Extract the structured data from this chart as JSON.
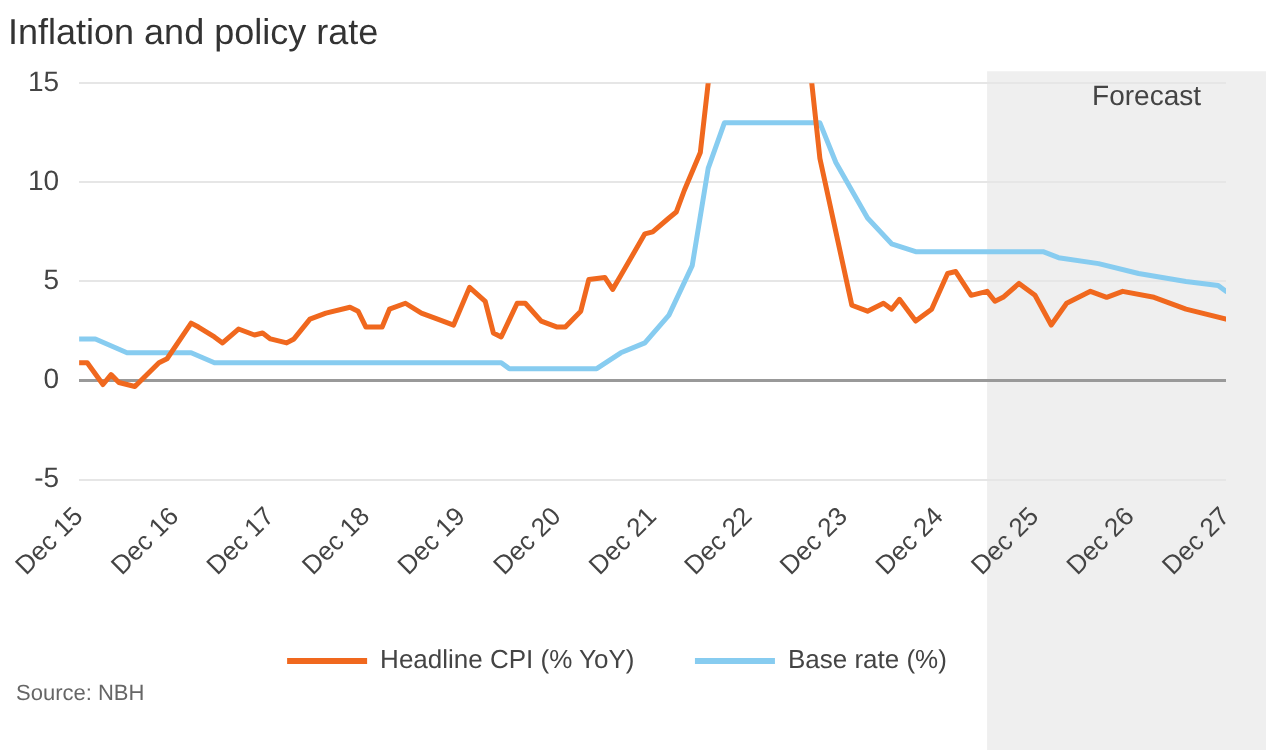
{
  "chart_data": {
    "type": "line",
    "title": "Inflation and policy rate",
    "annotations": [
      "Source: NBH"
    ],
    "xlim": [
      "2015-12",
      "2027-12"
    ],
    "xticks": [
      {
        "value": "2015-12",
        "label": "Dec 15"
      },
      {
        "value": "2016-12",
        "label": "Dec 16"
      },
      {
        "value": "2017-12",
        "label": "Dec 17"
      },
      {
        "value": "2018-12",
        "label": "Dec 18"
      },
      {
        "value": "2019-12",
        "label": "Dec 19"
      },
      {
        "value": "2020-12",
        "label": "Dec 20"
      },
      {
        "value": "2021-12",
        "label": "Dec 21"
      },
      {
        "value": "2022-12",
        "label": "Dec 22"
      },
      {
        "value": "2023-12",
        "label": "Dec 23"
      },
      {
        "value": "2024-12",
        "label": "Dec 24"
      },
      {
        "value": "2025-12",
        "label": "Dec 25"
      },
      {
        "value": "2026-12",
        "label": "Dec 26"
      },
      {
        "value": "2027-12",
        "label": "Dec 27"
      }
    ],
    "ylim": [
      -5,
      15
    ],
    "yticks": [
      -5,
      0,
      5,
      10,
      15
    ],
    "grid": "y",
    "legend": "bottom",
    "marker": "none",
    "line_style": "solid",
    "bands": [
      {
        "axis": "x",
        "from": "2025-06",
        "to": "2027-12",
        "label": "Forecast",
        "color": "#efefef"
      }
    ],
    "series": [
      {
        "name": "Headline CPI (% YoY)",
        "color": "#f0681e",
        "x": [
          "2015-12",
          "2016-01",
          "2016-03",
          "2016-04",
          "2016-05",
          "2016-07",
          "2016-10",
          "2016-11",
          "2017-02",
          "2017-03",
          "2017-05",
          "2017-06",
          "2017-08",
          "2017-10",
          "2017-11",
          "2017-12",
          "2018-02",
          "2018-03",
          "2018-05",
          "2018-07",
          "2018-10",
          "2018-11",
          "2018-12",
          "2019-02",
          "2019-03",
          "2019-05",
          "2019-07",
          "2019-09",
          "2019-11",
          "2020-01",
          "2020-03",
          "2020-04",
          "2020-05",
          "2020-07",
          "2020-08",
          "2020-10",
          "2020-12",
          "2021-01",
          "2021-03",
          "2021-04",
          "2021-06",
          "2021-07",
          "2021-08",
          "2021-11",
          "2021-12",
          "2022-02",
          "2022-03",
          "2022-04",
          "2022-06",
          "2022-07",
          "2023-01",
          "2023-08",
          "2023-09",
          "2023-11",
          "2024-01",
          "2024-03",
          "2024-05",
          "2024-06",
          "2024-07",
          "2024-09",
          "2024-11",
          "2025-01",
          "2025-02",
          "2025-04",
          "2025-06",
          "2025-07",
          "2025-08",
          "2025-10",
          "2025-12",
          "2026-02",
          "2026-04",
          "2026-07",
          "2026-09",
          "2026-11",
          "2027-03",
          "2027-07",
          "2027-12"
        ],
        "values": [
          0.9,
          0.9,
          -0.2,
          0.3,
          -0.1,
          -0.3,
          0.9,
          1.1,
          2.9,
          2.7,
          2.2,
          1.9,
          2.6,
          2.3,
          2.4,
          2.1,
          1.9,
          2.1,
          3.1,
          3.4,
          3.7,
          3.5,
          2.7,
          2.7,
          3.6,
          3.9,
          3.4,
          3.1,
          2.8,
          4.7,
          4.0,
          2.4,
          2.2,
          3.9,
          3.9,
          3.0,
          2.7,
          2.7,
          3.5,
          5.1,
          5.2,
          4.6,
          5.3,
          7.4,
          7.5,
          8.2,
          8.5,
          9.6,
          11.5,
          15,
          null,
          15,
          11.2,
          7.5,
          3.8,
          3.5,
          3.9,
          3.6,
          4.1,
          3.0,
          3.6,
          5.4,
          5.5,
          4.3,
          4.5,
          4.0,
          4.2,
          4.9,
          4.3,
          2.8,
          3.9,
          4.5,
          4.2,
          4.5,
          4.2,
          3.6,
          3.1
        ]
      },
      {
        "name": "Base rate (%)",
        "color": "#87ccf0",
        "x": [
          "2015-12",
          "2016-02",
          "2016-06",
          "2017-02",
          "2017-05",
          "2020-05",
          "2020-06",
          "2021-05",
          "2021-08",
          "2021-11",
          "2022-02",
          "2022-05",
          "2022-07",
          "2022-09",
          "2023-09",
          "2023-11",
          "2024-03",
          "2024-06",
          "2024-09",
          "2026-01",
          "2026-03",
          "2026-08",
          "2027-01",
          "2027-07",
          "2027-11",
          "2027-12"
        ],
        "values": [
          2.1,
          2.1,
          1.4,
          1.4,
          0.9,
          0.9,
          0.6,
          0.6,
          1.4,
          1.9,
          3.3,
          5.8,
          10.7,
          13.0,
          13.0,
          11.0,
          8.2,
          6.9,
          6.5,
          6.5,
          6.2,
          5.9,
          5.4,
          5.0,
          4.8,
          4.5
        ]
      }
    ]
  }
}
